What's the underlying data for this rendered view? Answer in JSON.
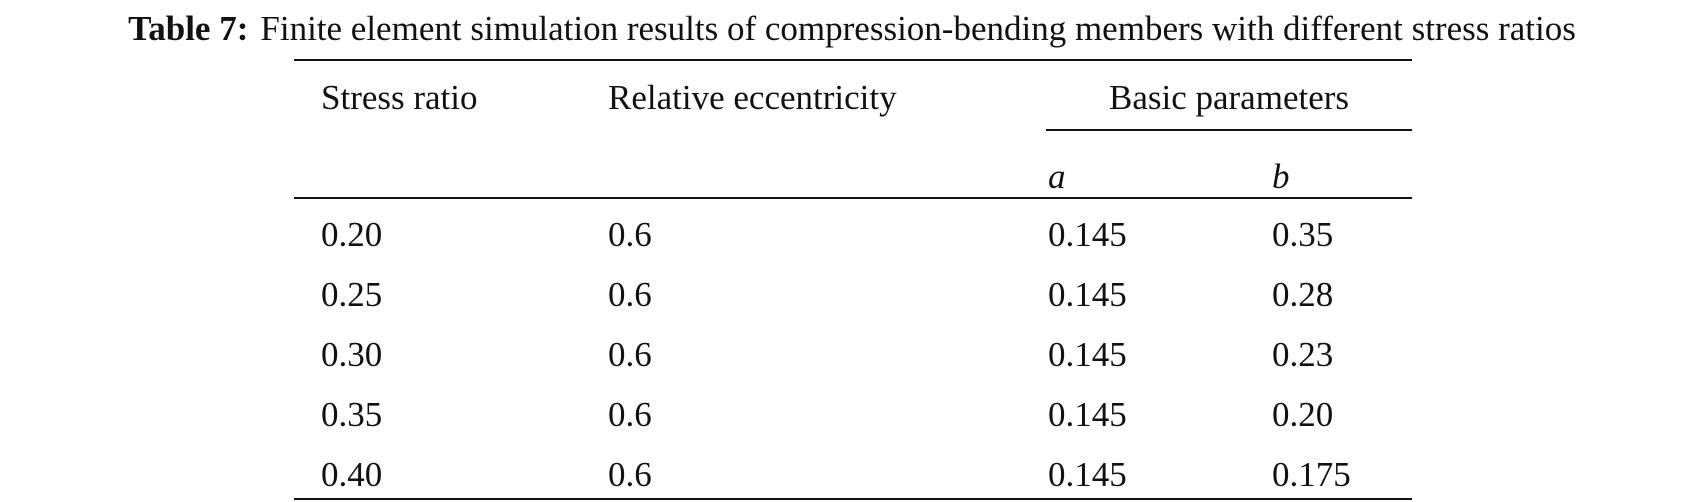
{
  "caption": {
    "label": "Table 7:",
    "text": "Finite element simulation results of compression-bending members with different stress ratios"
  },
  "table": {
    "headers": {
      "stress_ratio": "Stress ratio",
      "relative_eccentricity": "Relative eccentricity",
      "basic_parameters": "Basic parameters",
      "param_a": "a",
      "param_b": "b"
    },
    "rows": [
      [
        "0.20",
        "0.6",
        "0.145",
        "0.35"
      ],
      [
        "0.25",
        "0.6",
        "0.145",
        "0.28"
      ],
      [
        "0.30",
        "0.6",
        "0.145",
        "0.23"
      ],
      [
        "0.35",
        "0.6",
        "0.145",
        "0.20"
      ],
      [
        "0.40",
        "0.6",
        "0.145",
        "0.175"
      ]
    ]
  }
}
